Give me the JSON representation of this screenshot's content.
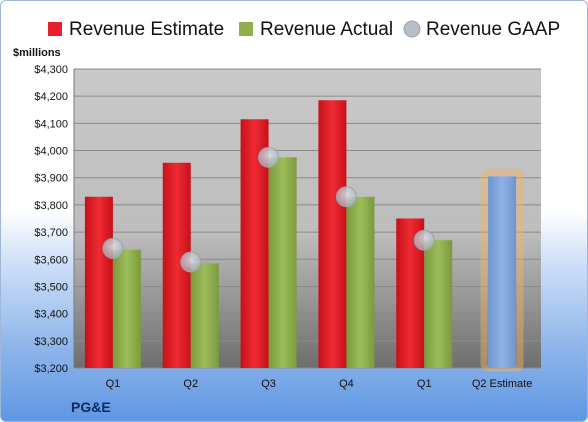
{
  "company": "PG&E",
  "chart_data": {
    "type": "bar",
    "unit_label": "$millions",
    "categories": [
      "Q1",
      "Q2",
      "Q3",
      "Q4",
      "Q1",
      "Q2 Estimate"
    ],
    "series": [
      {
        "name": "Revenue Estimate",
        "color": "#e8202a",
        "values": [
          3830,
          3955,
          4115,
          4185,
          3750,
          null
        ]
      },
      {
        "name": "Revenue Actual",
        "color": "#8fb04c",
        "values": [
          3635,
          3585,
          3975,
          3830,
          3670,
          3905
        ]
      },
      {
        "name": "Revenue GAAP",
        "marker": "circle",
        "color": "#b8bfc9",
        "values": [
          3640,
          3590,
          3975,
          3830,
          3670,
          null
        ]
      }
    ],
    "highlight": {
      "category_index": 5,
      "series": "Revenue Actual",
      "color": "#7ea2d9",
      "glow": "#f6b25c"
    },
    "ylim": [
      3200,
      4300
    ],
    "yticks": [
      3200,
      3300,
      3400,
      3500,
      3600,
      3700,
      3800,
      3900,
      4000,
      4100,
      4200,
      4300
    ],
    "ytick_labels": [
      "$3,200",
      "$3,300",
      "$3,400",
      "$3,500",
      "$3,600",
      "$3,700",
      "$3,800",
      "$3,900",
      "$4,000",
      "$4,100",
      "$4,200",
      "$4,300"
    ],
    "grid": true,
    "legend": "top"
  }
}
